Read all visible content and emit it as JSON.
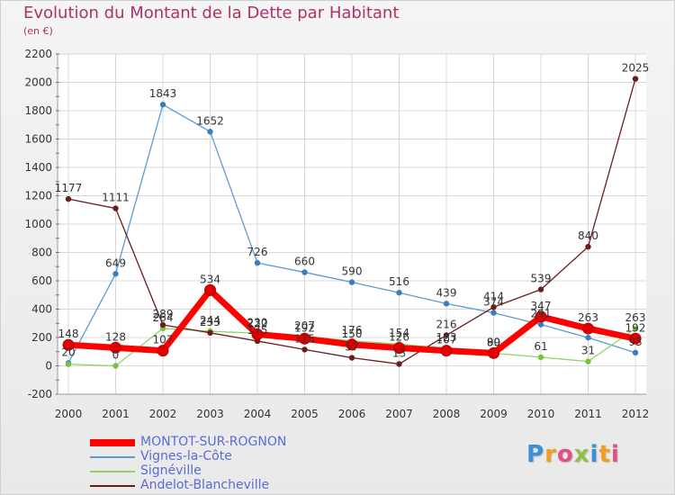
{
  "title": "Evolution du Montant de la Dette par Habitant",
  "subtitle": "(en €)",
  "chart_data": {
    "type": "line",
    "x": [
      "2000",
      "2001",
      "2002",
      "2003",
      "2004",
      "2005",
      "2006",
      "2007",
      "2008",
      "2009",
      "2010",
      "2011",
      "2012"
    ],
    "ylim": [
      -200,
      2200
    ],
    "yticks": [
      -200,
      0,
      200,
      400,
      600,
      800,
      1000,
      1200,
      1400,
      1600,
      1800,
      2000,
      2200
    ],
    "grid": true,
    "legend_position": "bottom-left",
    "series": [
      {
        "name": "MONTOT-SUR-ROGNON",
        "color": "#ff0000",
        "marker": "#e00000",
        "values": [
          148,
          128,
          107,
          534,
          222,
          192,
          150,
          126,
          107,
          90,
          347,
          263,
          192
        ]
      },
      {
        "name": "Vignes-la-Côte",
        "color": "#5b9bd5",
        "marker": "#3a7ec0",
        "values": [
          20,
          649,
          1843,
          1652,
          726,
          660,
          590,
          516,
          439,
          374,
          291,
          199,
          93
        ],
        "labels": [
          "20",
          "649",
          "1843",
          "1652",
          "726",
          "660",
          "590",
          "516",
          "439",
          "374",
          "291",
          "",
          "93"
        ]
      },
      {
        "name": "Signéville",
        "color": "#8fd36a",
        "marker": "#7ac143",
        "values": [
          12,
          0,
          264,
          244,
          230,
          207,
          176,
          154,
          123,
          89,
          61,
          31,
          263
        ]
      },
      {
        "name": "Andelot-Blancheville",
        "color": "#6b1c1c",
        "marker": "#6b1c1c",
        "values": [
          1177,
          1111,
          289,
          233,
          175,
          115,
          57,
          13,
          216,
          414,
          539,
          840,
          2025
        ]
      }
    ],
    "value_labels": [
      {
        "text": "148",
        "x": 0,
        "y": 148
      },
      {
        "text": "128",
        "x": 1,
        "y": 128
      },
      {
        "text": "107",
        "x": 2,
        "y": 107
      },
      {
        "text": "534",
        "x": 3,
        "y": 534
      },
      {
        "text": "222",
        "x": 4,
        "y": 222
      },
      {
        "text": "192",
        "x": 5,
        "y": 192
      },
      {
        "text": "150",
        "x": 6,
        "y": 150
      },
      {
        "text": "126",
        "x": 7,
        "y": 126
      },
      {
        "text": "107",
        "x": 8,
        "y": 107
      },
      {
        "text": "90",
        "x": 9,
        "y": 90
      },
      {
        "text": "347",
        "x": 10,
        "y": 347
      },
      {
        "text": "263",
        "x": 11,
        "y": 263
      },
      {
        "text": "192",
        "x": 12,
        "y": 192
      },
      {
        "text": "20",
        "x": 0,
        "y": 20
      },
      {
        "text": "649",
        "x": 1,
        "y": 649
      },
      {
        "text": "1843",
        "x": 2,
        "y": 1843
      },
      {
        "text": "1652",
        "x": 3,
        "y": 1652
      },
      {
        "text": "726",
        "x": 4,
        "y": 726
      },
      {
        "text": "660",
        "x": 5,
        "y": 660
      },
      {
        "text": "590",
        "x": 6,
        "y": 590
      },
      {
        "text": "516",
        "x": 7,
        "y": 516
      },
      {
        "text": "439",
        "x": 8,
        "y": 439
      },
      {
        "text": "374",
        "x": 9,
        "y": 374
      },
      {
        "text": "291",
        "x": 10,
        "y": 291
      },
      {
        "text": "93",
        "x": 12,
        "y": 93
      },
      {
        "text": "0",
        "x": 1,
        "y": 0
      },
      {
        "text": "264",
        "x": 2,
        "y": 264
      },
      {
        "text": "244",
        "x": 3,
        "y": 244
      },
      {
        "text": "230",
        "x": 4,
        "y": 230
      },
      {
        "text": "207",
        "x": 5,
        "y": 207
      },
      {
        "text": "176",
        "x": 6,
        "y": 176
      },
      {
        "text": "154",
        "x": 7,
        "y": 154
      },
      {
        "text": "123",
        "x": 8,
        "y": 123
      },
      {
        "text": "89",
        "x": 9,
        "y": 89
      },
      {
        "text": "61",
        "x": 10,
        "y": 61
      },
      {
        "text": "31",
        "x": 11,
        "y": 31
      },
      {
        "text": "263",
        "x": 12,
        "y": 263
      },
      {
        "text": "1177",
        "x": 0,
        "y": 1177
      },
      {
        "text": "1111",
        "x": 1,
        "y": 1111
      },
      {
        "text": "289",
        "x": 2,
        "y": 289
      },
      {
        "text": "233",
        "x": 3,
        "y": 233
      },
      {
        "text": "175",
        "x": 4,
        "y": 175
      },
      {
        "text": "115",
        "x": 5,
        "y": 115
      },
      {
        "text": "57",
        "x": 6,
        "y": 57
      },
      {
        "text": "13",
        "x": 7,
        "y": 13
      },
      {
        "text": "216",
        "x": 8,
        "y": 216
      },
      {
        "text": "414",
        "x": 9,
        "y": 414
      },
      {
        "text": "539",
        "x": 10,
        "y": 539
      },
      {
        "text": "840",
        "x": 11,
        "y": 840
      },
      {
        "text": "2025",
        "x": 12,
        "y": 2025
      }
    ]
  },
  "legend": {
    "items": [
      {
        "label": "MONTOT-SUR-ROGNON",
        "color": "#ff0000",
        "label_color": "#5b6bd8"
      },
      {
        "label": "Vignes-la-Côte",
        "color": "#5b9bd5",
        "label_color": "#5b6bd8"
      },
      {
        "label": "Signéville",
        "color": "#8fd36a",
        "label_color": "#5b6bd8"
      },
      {
        "label": "Andelot-Blancheville",
        "color": "#6b1c1c",
        "label_color": "#5b6bd8"
      }
    ]
  },
  "logo": {
    "text": "Proxiti",
    "letters": [
      {
        "ch": "P",
        "color": "#3a8fd8"
      },
      {
        "ch": "r",
        "color": "#f0a020"
      },
      {
        "ch": "o",
        "color": "#e05080"
      },
      {
        "ch": "x",
        "color": "#8bc34a"
      },
      {
        "ch": "i",
        "color": "#3a8fd8"
      },
      {
        "ch": "t",
        "color": "#f0a020"
      },
      {
        "ch": "i",
        "color": "#e05080"
      }
    ]
  }
}
